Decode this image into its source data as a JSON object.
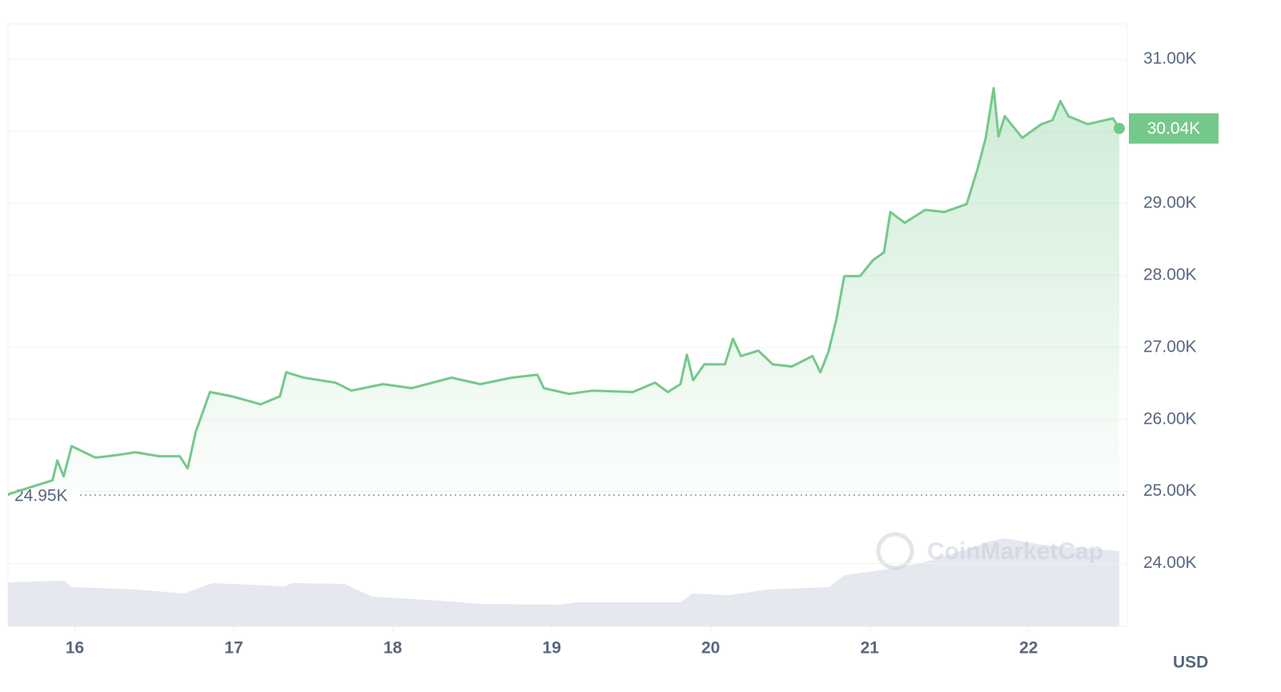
{
  "chart_data": {
    "type": "area",
    "x": [
      15.58,
      15.86,
      15.89,
      15.93,
      15.98,
      16.13,
      16.28,
      16.38,
      16.53,
      16.66,
      16.71,
      16.76,
      16.85,
      16.99,
      17.17,
      17.29,
      17.33,
      17.44,
      17.64,
      17.74,
      17.94,
      18.12,
      18.37,
      18.55,
      18.75,
      18.91,
      18.95,
      19.11,
      19.26,
      19.51,
      19.65,
      19.73,
      19.81,
      19.85,
      19.89,
      19.96,
      20.09,
      20.14,
      20.19,
      20.3,
      20.39,
      20.51,
      20.64,
      20.69,
      20.74,
      20.79,
      20.84,
      20.94,
      21.02,
      21.09,
      21.13,
      21.22,
      21.35,
      21.47,
      21.61,
      21.68,
      21.73,
      21.78,
      21.81,
      21.85,
      21.96,
      22.08,
      22.15,
      22.2,
      22.25,
      22.37,
      22.53,
      22.57
    ],
    "series": [
      {
        "color": "#74c98a",
        "values": [
          24960,
          25155,
          25430,
          25210,
          25630,
          25470,
          25510,
          25545,
          25490,
          25490,
          25320,
          25820,
          26380,
          26320,
          26210,
          26320,
          26655,
          26580,
          26510,
          26400,
          26490,
          26435,
          26580,
          26490,
          26580,
          26620,
          26435,
          26355,
          26400,
          26380,
          26510,
          26380,
          26490,
          26900,
          26545,
          26765,
          26765,
          27120,
          26880,
          26955,
          26765,
          26735,
          26880,
          26655,
          26935,
          27380,
          27990,
          27990,
          28210,
          28320,
          28880,
          28730,
          28910,
          28880,
          28990,
          29490,
          29910,
          30600,
          29930,
          30210,
          29910,
          30100,
          30155,
          30420,
          30210,
          30100,
          30180,
          30040
        ]
      }
    ],
    "xlim": [
      15.58,
      22.57
    ],
    "xticks": [
      16,
      17,
      18,
      19,
      20,
      21,
      22
    ],
    "ylim": [
      23150,
      31490
    ],
    "yticks": [
      {
        "value": 24000,
        "label": "24.00K"
      },
      {
        "value": 25000,
        "label": "25.00K"
      },
      {
        "value": 26000,
        "label": "26.00K"
      },
      {
        "value": 27000,
        "label": "27.00K"
      },
      {
        "value": 28000,
        "label": "28.00K"
      },
      {
        "value": 29000,
        "label": "29.00K"
      },
      {
        "value": 30000,
        "label": "30.00K"
      },
      {
        "value": 31000,
        "label": "31.00K"
      }
    ],
    "reference_line": {
      "value": 24950,
      "label": "24.95K"
    },
    "last_price": {
      "value": 30040,
      "label": "30.04K"
    },
    "currency": "USD",
    "watermark": "CoinMarketCap",
    "grid": true
  }
}
